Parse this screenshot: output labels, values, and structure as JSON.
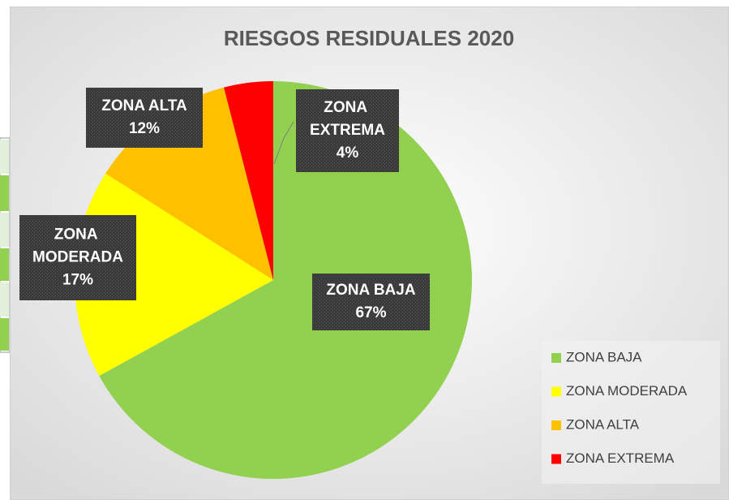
{
  "chart_data": {
    "type": "pie",
    "title": "RIESGOS RESIDUALES 2020",
    "categories": [
      "ZONA BAJA",
      "ZONA MODERADA",
      "ZONA ALTA",
      "ZONA EXTREMA"
    ],
    "values": [
      67,
      17,
      12,
      4
    ],
    "value_labels": [
      "67%",
      "17%",
      "12%",
      "4%"
    ],
    "colors": [
      "#92d050",
      "#ffff00",
      "#ffc000",
      "#ff0000"
    ],
    "legend": "right"
  }
}
